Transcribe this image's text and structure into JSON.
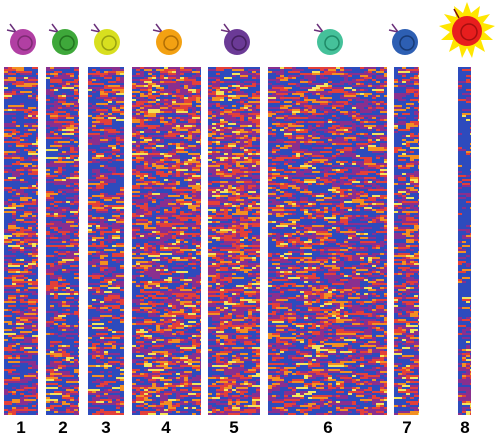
{
  "lanes": [
    {
      "number": "1",
      "cell_color": "#b13fa3",
      "kind": "cell"
    },
    {
      "number": "2",
      "cell_color": "#3ea83a",
      "kind": "cell"
    },
    {
      "number": "3",
      "cell_color": "#d8df1f",
      "kind": "cell"
    },
    {
      "number": "4",
      "cell_color": "#f3a112",
      "kind": "cell"
    },
    {
      "number": "5",
      "cell_color": "#6b3a96",
      "kind": "cell"
    },
    {
      "number": "6",
      "cell_color": "#45c19a",
      "kind": "cell"
    },
    {
      "number": "7",
      "cell_color": "#2d5fb3",
      "kind": "cell"
    },
    {
      "number": "8",
      "cell_color": "#e81e1e",
      "kind": "activated-cell"
    }
  ],
  "heatmap_colors": {
    "low": "#2d4bbd",
    "mid_low": "#8a2f8e",
    "mid": "#e3403a",
    "high": "#f39022",
    "max": "#f4e45a"
  }
}
